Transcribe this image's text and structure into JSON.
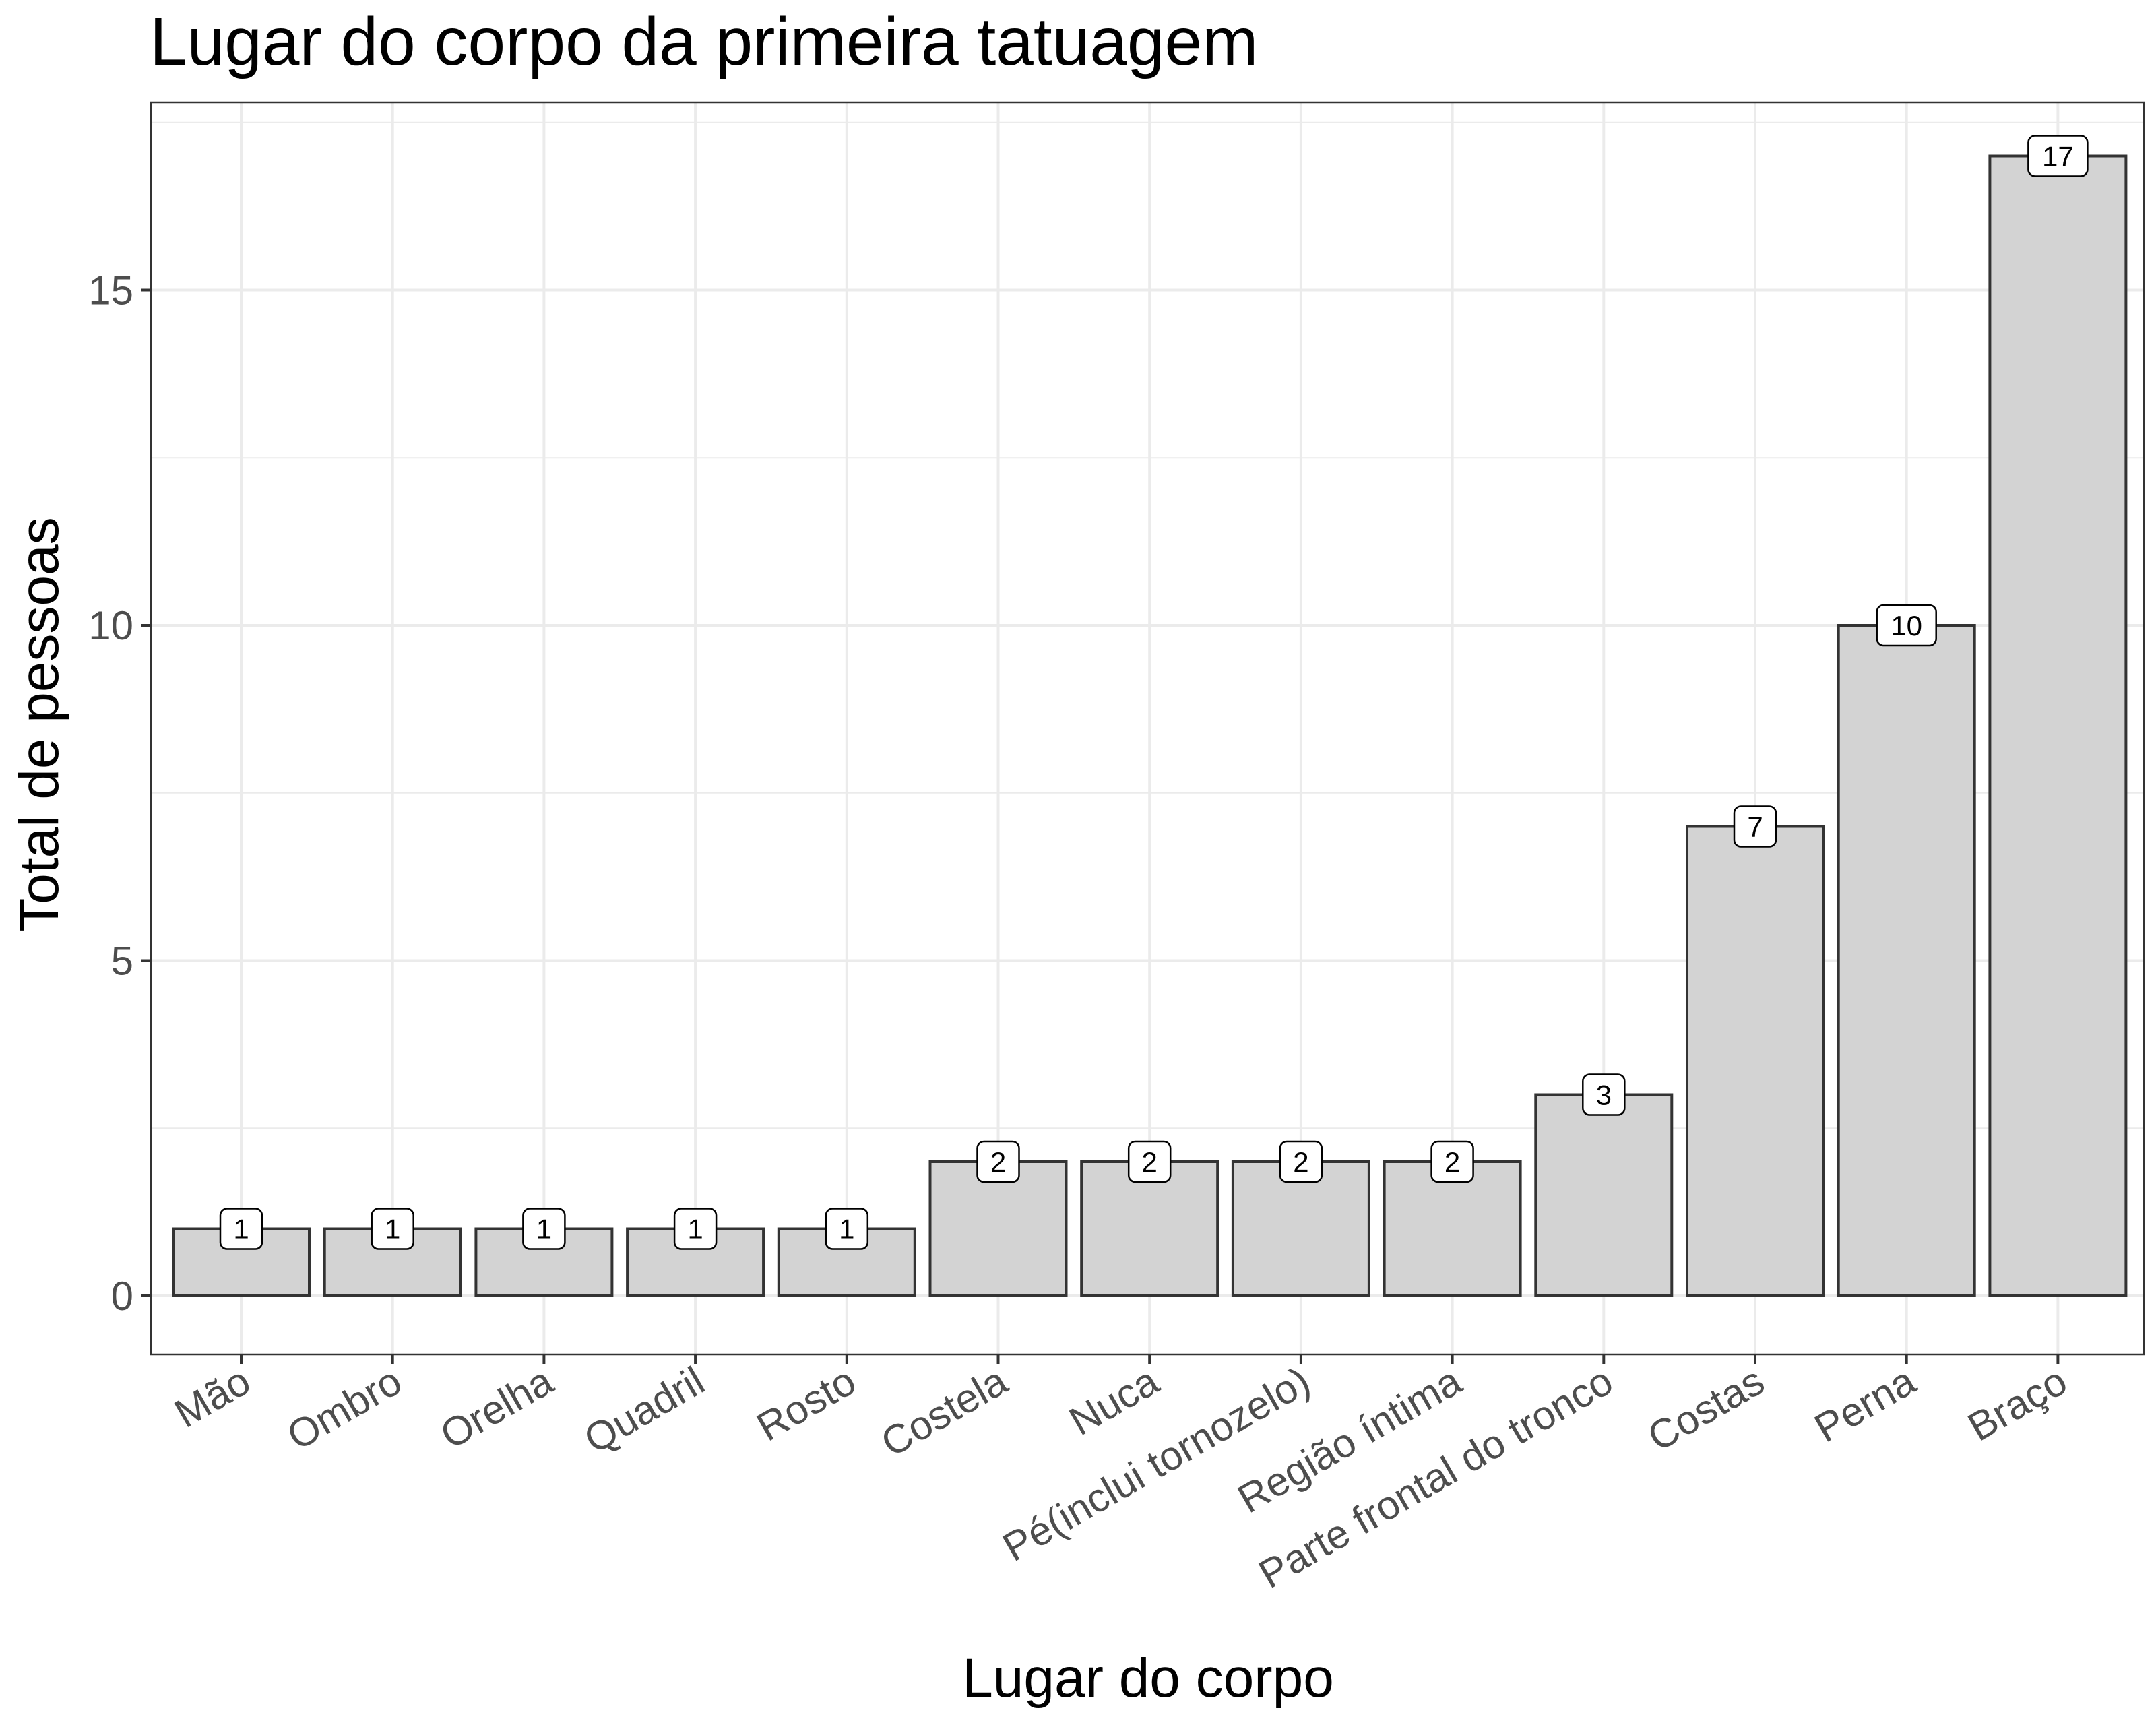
{
  "chart_data": {
    "type": "bar",
    "title": "Lugar do corpo da primeira tatuagem",
    "xlabel": "Lugar do corpo",
    "ylabel": "Total de pessoas",
    "categories": [
      "Mão",
      "Ombro",
      "Orelha",
      "Quadril",
      "Rosto",
      "Costela",
      "Nuca",
      "Pé(inclui tornozelo)",
      "Região íntima",
      "Parte frontal do tronco",
      "Costas",
      "Perna",
      "Braço"
    ],
    "values": [
      1,
      1,
      1,
      1,
      1,
      2,
      2,
      2,
      2,
      3,
      7,
      10,
      17
    ],
    "data_labels": [
      "1",
      "1",
      "1",
      "1",
      "1",
      "2",
      "2",
      "2",
      "2",
      "3",
      "7",
      "10",
      "17"
    ],
    "yticks": [
      "0",
      "5",
      "10",
      "15"
    ],
    "ylim": [
      -0.85,
      17.85
    ],
    "grid": true,
    "colors": {
      "bar_fill": "#d3d3d3",
      "bar_stroke": "#333333",
      "grid": "#ebebeb",
      "panel_border": "#333333"
    }
  }
}
